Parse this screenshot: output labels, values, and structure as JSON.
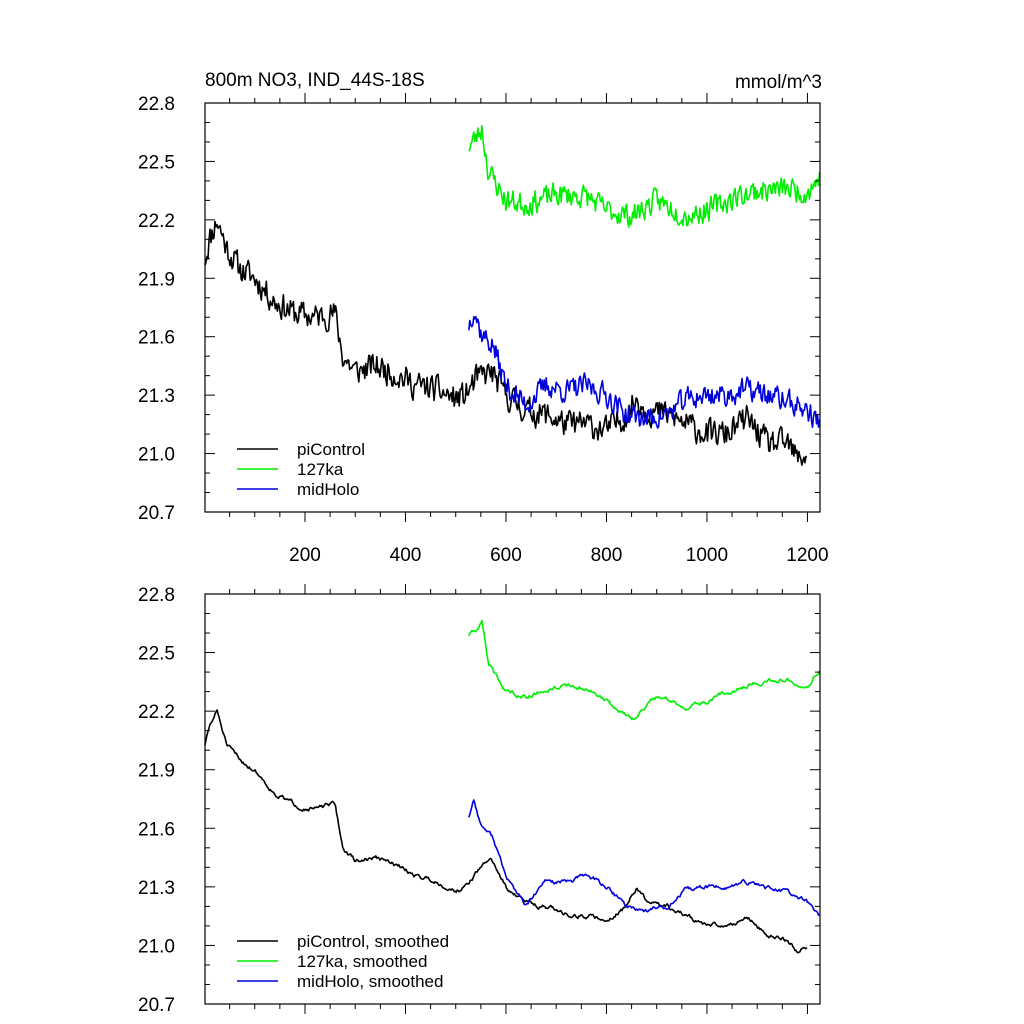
{
  "page": {
    "title_left": "800m NO3, IND_44S-18S",
    "title_right": "mmol/m^3"
  },
  "colors": {
    "piControl": "#000000",
    "127ka": "#00ee00",
    "midHolo": "#0000dd"
  },
  "chart_data": [
    {
      "type": "line",
      "title": "800m NO3, IND_44S-18S",
      "units": "mmol/m^3",
      "xlim": [
        1,
        1225
      ],
      "ylim": [
        20.7,
        22.8
      ],
      "xticks": [
        200,
        400,
        600,
        800,
        1000,
        1200
      ],
      "xtick_labels_shown": true,
      "yticks": [
        20.7,
        21.0,
        21.3,
        21.6,
        21.9,
        22.2,
        22.5,
        22.8
      ],
      "ytick_labels": [
        "20.7",
        "21.0",
        "21.3",
        "21.6",
        "21.9",
        "22.2",
        "22.5",
        "22.8"
      ],
      "grid": false,
      "legend_position": "bottom-left",
      "series": [
        {
          "name": "piControl",
          "color": "#000000",
          "noise": 0.07,
          "seed": 11,
          "x": [
            1,
            10,
            25,
            45,
            70,
            100,
            140,
            180,
            220,
            260,
            275,
            300,
            340,
            380,
            420,
            460,
            500,
            520,
            540,
            570,
            600,
            640,
            680,
            720,
            760,
            800,
            840,
            860,
            880,
            920,
            960,
            1000,
            1040,
            1080,
            1120,
            1160,
            1180,
            1200
          ],
          "y": [
            22.0,
            22.1,
            22.2,
            22.05,
            21.95,
            21.9,
            21.78,
            21.72,
            21.7,
            21.72,
            21.5,
            21.42,
            21.45,
            21.41,
            21.35,
            21.33,
            21.28,
            21.3,
            21.38,
            21.42,
            21.3,
            21.22,
            21.2,
            21.15,
            21.15,
            21.12,
            21.2,
            21.28,
            21.22,
            21.2,
            21.15,
            21.1,
            21.1,
            21.18,
            21.05,
            21.05,
            20.97,
            21.0
          ]
        },
        {
          "name": "127ka",
          "color": "#00ee00",
          "noise": 0.06,
          "seed": 23,
          "x": [
            526,
            540,
            552,
            565,
            600,
            640,
            700,
            760,
            800,
            850,
            900,
            960,
            1000,
            1060,
            1100,
            1160,
            1200,
            1225
          ],
          "y": [
            22.58,
            22.62,
            22.67,
            22.45,
            22.3,
            22.28,
            22.33,
            22.32,
            22.25,
            22.22,
            22.3,
            22.22,
            22.25,
            22.32,
            22.35,
            22.36,
            22.34,
            22.42
          ]
        },
        {
          "name": "midHolo",
          "color": "#0000dd",
          "noise": 0.06,
          "seed": 37,
          "x": [
            526,
            536,
            550,
            575,
            600,
            640,
            680,
            720,
            760,
            800,
            840,
            880,
            920,
            960,
            1000,
            1040,
            1080,
            1120,
            1160,
            1200,
            1225
          ],
          "y": [
            21.66,
            21.75,
            21.62,
            21.55,
            21.35,
            21.25,
            21.35,
            21.32,
            21.35,
            21.3,
            21.2,
            21.18,
            21.2,
            21.28,
            21.3,
            21.3,
            21.33,
            21.3,
            21.27,
            21.22,
            21.15
          ]
        }
      ],
      "legend": [
        {
          "label": "piControl",
          "color": "#000000"
        },
        {
          "label": "127ka",
          "color": "#00ee00"
        },
        {
          "label": "midHolo",
          "color": "#0000dd"
        }
      ]
    },
    {
      "type": "line",
      "title": "",
      "xlim": [
        1,
        1225
      ],
      "ylim": [
        20.7,
        22.8
      ],
      "xticks": [
        200,
        400,
        600,
        800,
        1000,
        1200
      ],
      "xtick_labels_shown": false,
      "yticks": [
        20.7,
        21.0,
        21.3,
        21.6,
        21.9,
        22.2,
        22.5,
        22.8
      ],
      "ytick_labels": [
        "20.7",
        "21.0",
        "21.3",
        "21.6",
        "21.9",
        "22.2",
        "22.5",
        "22.8"
      ],
      "grid": false,
      "legend_position": "bottom-left",
      "series": [
        {
          "name": "piControl, smoothed",
          "color": "#000000",
          "noise": 0.025,
          "seed": 51,
          "x": [
            1,
            10,
            25,
            45,
            70,
            100,
            140,
            180,
            220,
            260,
            275,
            300,
            340,
            380,
            420,
            460,
            500,
            520,
            540,
            570,
            600,
            640,
            680,
            720,
            760,
            800,
            840,
            860,
            880,
            920,
            960,
            1000,
            1040,
            1080,
            1120,
            1160,
            1180,
            1200
          ],
          "y": [
            22.03,
            22.12,
            22.2,
            22.02,
            21.95,
            21.9,
            21.78,
            21.72,
            21.7,
            21.72,
            21.5,
            21.43,
            21.45,
            21.41,
            21.36,
            21.33,
            21.28,
            21.3,
            21.37,
            21.45,
            21.3,
            21.22,
            21.2,
            21.16,
            21.15,
            21.13,
            21.2,
            21.3,
            21.22,
            21.2,
            21.15,
            21.1,
            21.1,
            21.15,
            21.05,
            21.03,
            20.97,
            21.0
          ]
        },
        {
          "name": "127ka, smoothed",
          "color": "#00ee00",
          "noise": 0.025,
          "seed": 63,
          "x": [
            526,
            540,
            552,
            565,
            600,
            640,
            700,
            760,
            800,
            850,
            900,
            960,
            1000,
            1060,
            1100,
            1160,
            1200,
            1225
          ],
          "y": [
            22.59,
            22.6,
            22.66,
            22.45,
            22.3,
            22.28,
            22.33,
            22.32,
            22.25,
            22.15,
            22.28,
            22.22,
            22.25,
            22.32,
            22.35,
            22.36,
            22.34,
            22.42
          ]
        },
        {
          "name": "midHolo, smoothed",
          "color": "#0000dd",
          "noise": 0.025,
          "seed": 77,
          "x": [
            526,
            536,
            550,
            575,
            600,
            640,
            680,
            720,
            760,
            800,
            840,
            880,
            920,
            960,
            1000,
            1040,
            1080,
            1120,
            1160,
            1200,
            1225
          ],
          "y": [
            21.66,
            21.75,
            21.62,
            21.55,
            21.35,
            21.2,
            21.33,
            21.32,
            21.36,
            21.3,
            21.2,
            21.18,
            21.2,
            21.28,
            21.3,
            21.3,
            21.32,
            21.3,
            21.27,
            21.22,
            21.15
          ]
        }
      ],
      "legend": [
        {
          "label": "piControl, smoothed",
          "color": "#000000"
        },
        {
          "label": "127ka, smoothed",
          "color": "#00ee00"
        },
        {
          "label": "midHolo, smoothed",
          "color": "#0000dd"
        }
      ]
    }
  ]
}
